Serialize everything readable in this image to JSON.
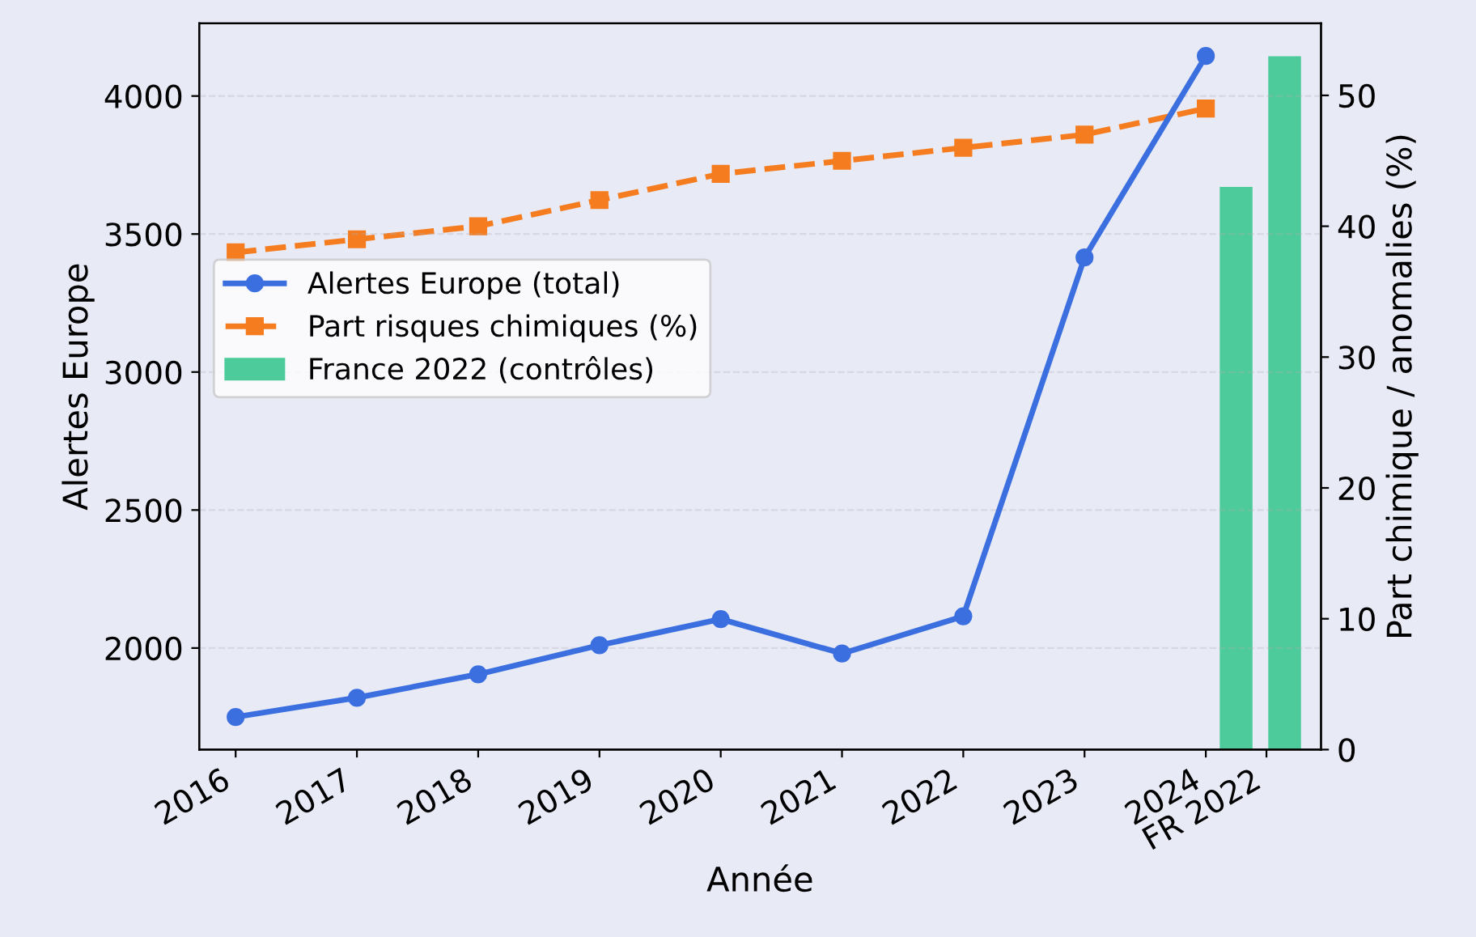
{
  "chart_data": {
    "type": "line",
    "xlabel": "Année",
    "ylabel": "Alertes Europe",
    "y2label": "Part chimique / anomalies (%)",
    "xlim": [
      2015.7,
      2024.95
    ],
    "xticks": [
      2016,
      2017,
      2018,
      2019,
      2020,
      2021,
      2022,
      2023,
      2024,
      {
        "value": 2024.5,
        "label": "FR 2022"
      }
    ],
    "ylim": [
      1632,
      4263
    ],
    "yticks": [
      2000,
      2500,
      3000,
      3500,
      4000
    ],
    "y2lim": [
      0,
      55.5
    ],
    "y2ticks": [
      0,
      10,
      20,
      30,
      40,
      50
    ],
    "grid": "y",
    "legend": "left",
    "series": [
      {
        "name": "Alertes Europe (total)",
        "color": "#3b6fe0",
        "marker": "circle",
        "line_style": "solid",
        "x": [
          2016,
          2017,
          2018,
          2019,
          2020,
          2021,
          2022,
          2023,
          2024
        ],
        "values": [
          1750,
          1820,
          1905,
          2010,
          2105,
          1980,
          2115,
          3415,
          4145
        ]
      },
      {
        "name": "Part risques chimiques (%)",
        "axis": "y2",
        "color": "#f57c1f",
        "marker": "square",
        "line_style": "dashed",
        "x": [
          2016,
          2017,
          2018,
          2019,
          2020,
          2021,
          2022,
          2023,
          2024
        ],
        "values": [
          38,
          39,
          40,
          42,
          44,
          45,
          46,
          47,
          49
        ]
      },
      {
        "name": "France 2022 (contrôles)",
        "type": "bar",
        "axis": "y2",
        "color": "#4ecb9b",
        "x": [
          2024.25,
          2024.65
        ],
        "values": [
          43,
          53
        ]
      }
    ]
  }
}
